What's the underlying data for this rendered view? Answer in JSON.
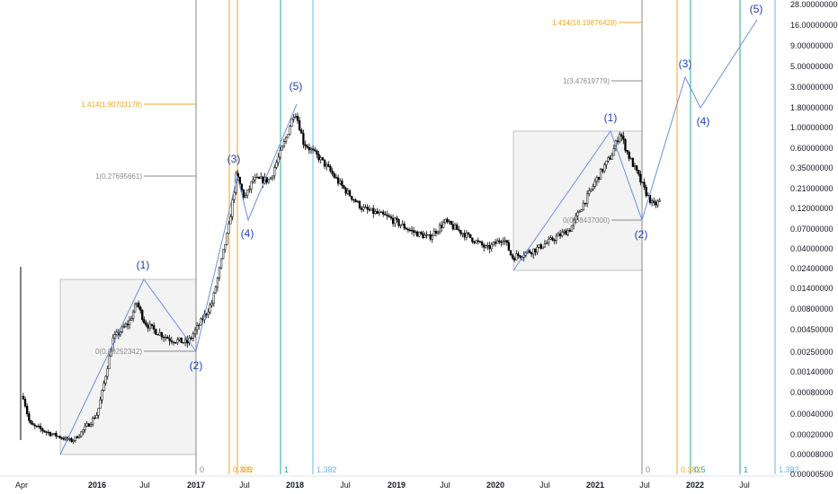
{
  "chart_data": {
    "type": "candlestick",
    "y_scale": "log",
    "colors": {
      "candle": "#000000",
      "wave_line": "#6d8fdc",
      "wave_label": "#2341b8",
      "fib_orange": "#f5a623",
      "fib_gray": "#8a8a8a",
      "time_teal": "#26a69a",
      "time_blue": "#64b5f6",
      "box_fill": "#f3f3f3",
      "box_stroke": "#9e9e9e"
    },
    "price_axis": {
      "ticks": [
        "28.00000000",
        "16.00000000",
        "9.00000000",
        "5.00000000",
        "3.00000000",
        "1.80000000",
        "1.00000000",
        "0.60000000",
        "0.35000000",
        "0.21000000",
        "0.12000000",
        "0.07000000",
        "0.04000000",
        "0.02400000",
        "0.01400000",
        "0.00800000",
        "0.00450000",
        "0.00250000",
        "0.00140000",
        "0.00080000",
        "0.00040000",
        "0.00020000",
        "0.00008000",
        "0.00000500"
      ]
    },
    "time_axis": {
      "ticks": [
        {
          "label": "Apr",
          "bold": false
        },
        {
          "label": "2016",
          "bold": true
        },
        {
          "label": "Jul",
          "bold": false
        },
        {
          "label": "2017",
          "bold": true
        },
        {
          "label": "Jul",
          "bold": false
        },
        {
          "label": "2018",
          "bold": true
        },
        {
          "label": "Jul",
          "bold": false
        },
        {
          "label": "2019",
          "bold": true
        },
        {
          "label": "Jul",
          "bold": false
        },
        {
          "label": "2020",
          "bold": true
        },
        {
          "label": "Jul",
          "bold": false
        },
        {
          "label": "2021",
          "bold": true
        },
        {
          "label": "Jul",
          "bold": false
        },
        {
          "label": "2022",
          "bold": true
        },
        {
          "label": "Jul",
          "bold": false
        }
      ]
    },
    "fib_levels": [
      {
        "text": "1.414(1.90703178)",
        "color": "orange"
      },
      {
        "text": "1(0.27695661)",
        "color": "gray"
      },
      {
        "text": "0(0.00252342)",
        "color": "gray"
      },
      {
        "text": "1.414(16.19876428)",
        "color": "orange"
      },
      {
        "text": "1(3.47619779)",
        "color": "gray"
      },
      {
        "text": "0(0.08437000)",
        "color": "gray"
      }
    ],
    "time_lines": [
      {
        "label": "0",
        "color": "gray"
      },
      {
        "label": "0.382",
        "color": "orange"
      },
      {
        "label": "0.5",
        "color": "orange"
      },
      {
        "label": "1",
        "color": "teal"
      },
      {
        "label": "1.382",
        "color": "blue"
      },
      {
        "label": "0",
        "color": "gray"
      },
      {
        "label": "0.382",
        "color": "orange"
      },
      {
        "label": "0.5",
        "color": "teal"
      },
      {
        "label": "1",
        "color": "teal"
      },
      {
        "label": "1.382",
        "color": "blue"
      }
    ],
    "wave_labels": [
      {
        "text": "(1)",
        "price": 0.0185
      },
      {
        "text": "(2)",
        "price": 0.0025
      },
      {
        "text": "(3)",
        "price": 0.3
      },
      {
        "text": "(4)",
        "price": 0.095
      },
      {
        "text": "(5)",
        "price": 1.98
      },
      {
        "text": "(1)",
        "price": 0.94
      },
      {
        "text": "(2)",
        "price": 0.085
      },
      {
        "text": "(3)",
        "price": 4.2
      },
      {
        "text": "(4)",
        "price": 1.8
      },
      {
        "text": "(5)",
        "price": 17.5
      }
    ],
    "series_anchors": [
      [
        "2015-04",
        0.0009
      ],
      [
        "2015-05",
        0.00028
      ],
      [
        "2015-07",
        0.00022
      ],
      [
        "2015-10",
        0.00015
      ],
      [
        "2016-01",
        0.0004
      ],
      [
        "2016-03",
        0.0035
      ],
      [
        "2016-05",
        0.0055
      ],
      [
        "2016-06",
        0.0095
      ],
      [
        "2016-07",
        0.0055
      ],
      [
        "2016-08",
        0.0045
      ],
      [
        "2016-10",
        0.0035
      ],
      [
        "2016-12",
        0.0032
      ],
      [
        "2017-01",
        0.0045
      ],
      [
        "2017-03",
        0.0095
      ],
      [
        "2017-05",
        0.07
      ],
      [
        "2017-06",
        0.3
      ],
      [
        "2017-07",
        0.16
      ],
      [
        "2017-08",
        0.26
      ],
      [
        "2017-10",
        0.26
      ],
      [
        "2017-12",
        0.8
      ],
      [
        "2018-01",
        1.65
      ],
      [
        "2018-02",
        0.7
      ],
      [
        "2018-04",
        0.45
      ],
      [
        "2018-06",
        0.26
      ],
      [
        "2018-09",
        0.12
      ],
      [
        "2018-12",
        0.095
      ],
      [
        "2019-03",
        0.065
      ],
      [
        "2019-05",
        0.055
      ],
      [
        "2019-07",
        0.085
      ],
      [
        "2019-10",
        0.055
      ],
      [
        "2019-12",
        0.04
      ],
      [
        "2020-02",
        0.055
      ],
      [
        "2020-03",
        0.032
      ],
      [
        "2020-06",
        0.04
      ],
      [
        "2020-10",
        0.07
      ],
      [
        "2021-01",
        0.25
      ],
      [
        "2021-03",
        0.5
      ],
      [
        "2021-04",
        0.9
      ],
      [
        "2021-05",
        0.5
      ],
      [
        "2021-07",
        0.2
      ],
      [
        "2021-08",
        0.13
      ],
      [
        "2021-09",
        0.15
      ]
    ]
  }
}
